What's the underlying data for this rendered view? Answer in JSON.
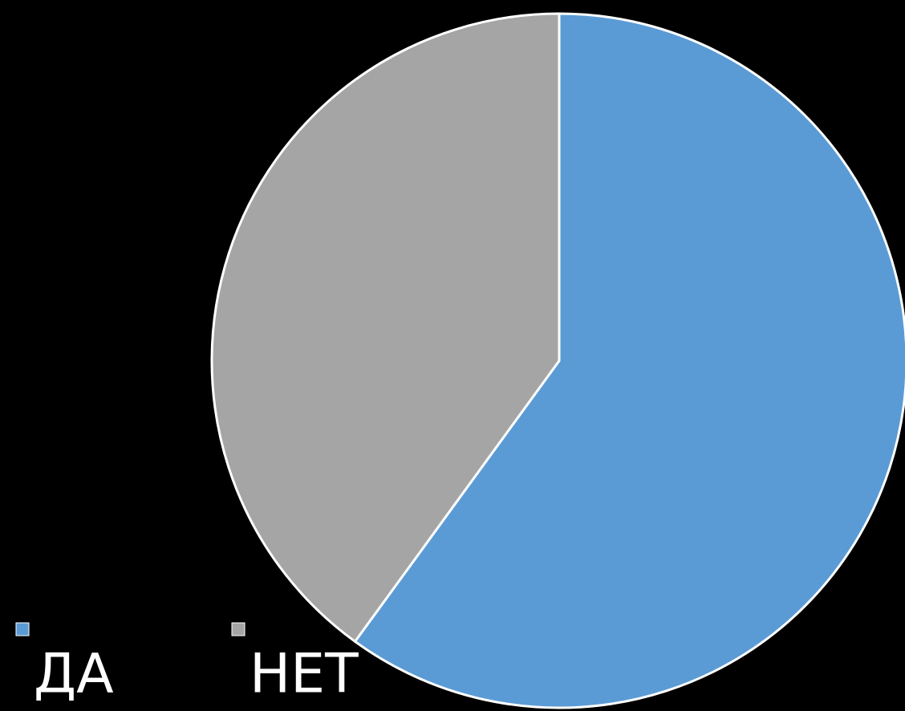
{
  "chart_data": {
    "type": "pie",
    "categories": [
      "ДА",
      "НЕТ"
    ],
    "values": [
      60,
      40
    ],
    "colors": [
      "#5b9bd5",
      "#a5a5a5"
    ],
    "legend": "bottom-left"
  }
}
